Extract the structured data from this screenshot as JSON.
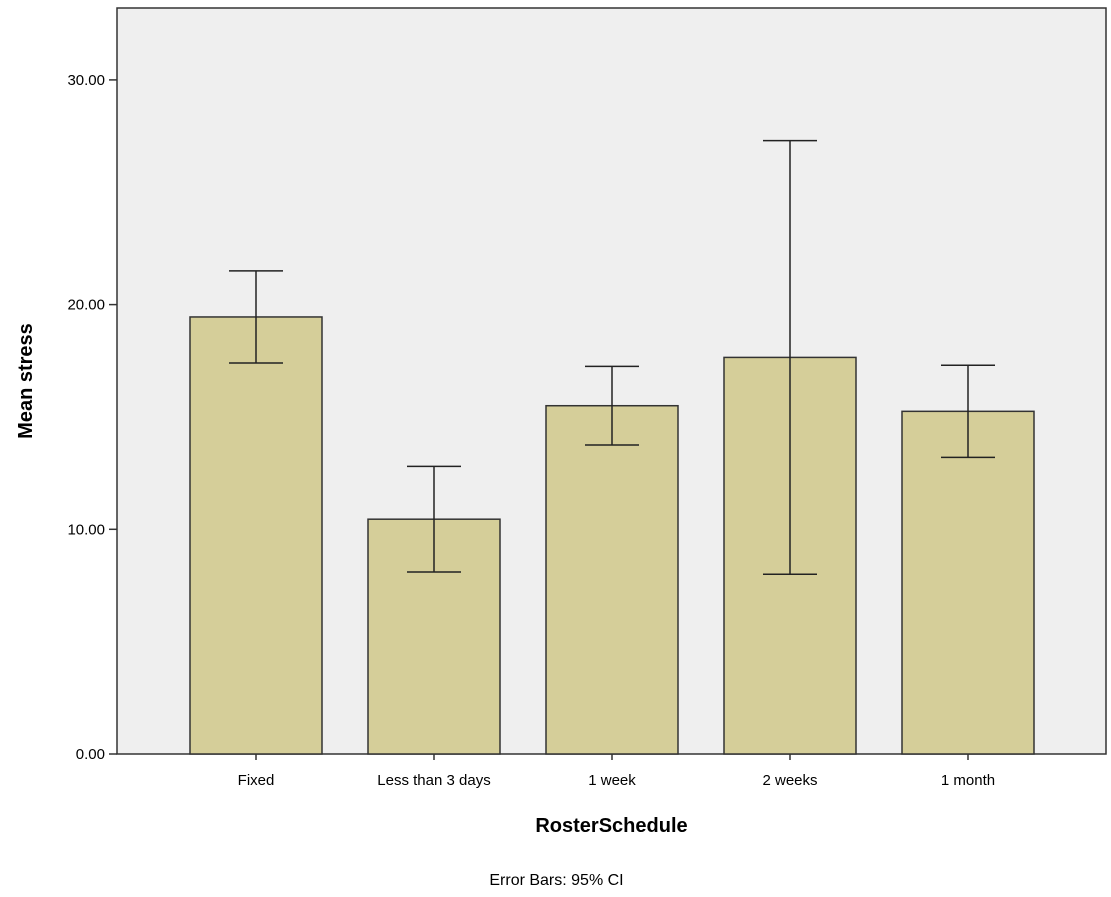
{
  "chart_data": {
    "type": "bar",
    "categories": [
      "Fixed",
      "Less than 3 days",
      "1 week",
      "2 weeks",
      "1 month"
    ],
    "values": [
      19.45,
      10.45,
      15.5,
      17.65,
      15.25
    ],
    "error_bars": {
      "type": "95% CI",
      "lower": [
        17.4,
        8.1,
        13.75,
        8.0,
        13.2
      ],
      "upper": [
        21.5,
        12.8,
        17.25,
        27.3,
        17.3
      ]
    },
    "xlabel": "RosterSchedule",
    "ylabel": "Mean stress",
    "ylim": [
      0,
      33.2
    ],
    "yticks": [
      0,
      10,
      20,
      30
    ],
    "ytick_labels": [
      "0.00",
      "10.00",
      "20.00",
      "30.00"
    ],
    "grid": false,
    "footnote": "Error Bars: 95% CI",
    "colors": {
      "plot_background": "#efefef",
      "bar_fill": "#d5ce99",
      "bar_stroke": "#333333",
      "axis": "#333333",
      "error_bar": "#222222"
    }
  }
}
